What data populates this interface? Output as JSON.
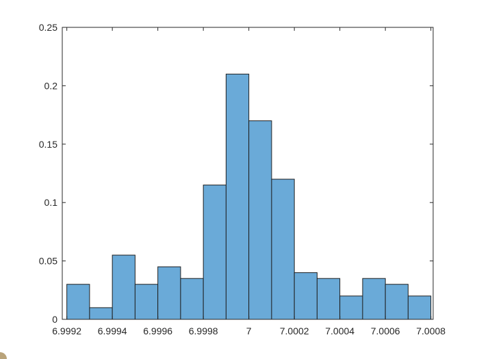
{
  "chart_data": {
    "type": "bar",
    "style": "histogram",
    "bin_edges": [
      6.9992,
      6.9993,
      6.9994,
      6.9995,
      6.9996,
      6.9997,
      6.9998,
      6.9999,
      7.0,
      7.0001,
      7.0002,
      7.0003,
      7.0004,
      7.0005,
      7.0006,
      7.0007,
      7.0008
    ],
    "values": [
      0.03,
      0.01,
      0.055,
      0.03,
      0.045,
      0.035,
      0.115,
      0.21,
      0.17,
      0.12,
      0.04,
      0.035,
      0.02,
      0.035,
      0.03,
      0.02
    ],
    "xlim": [
      6.99918,
      7.00081
    ],
    "ylim": [
      0,
      0.25
    ],
    "xticks": [
      "6.9992",
      "6.9994",
      "6.9996",
      "6.9998",
      "7",
      "7.0002",
      "7.0004",
      "7.0006",
      "7.0008"
    ],
    "yticks": [
      "0",
      "0.05",
      "0.1",
      "0.15",
      "0.2",
      "0.25"
    ],
    "title": "",
    "xlabel": "",
    "ylabel": "",
    "grid": false,
    "legend": "none",
    "bar_color": "#6aaad8",
    "edge_color": "#1f1f1f",
    "axis_color": "#262626"
  }
}
